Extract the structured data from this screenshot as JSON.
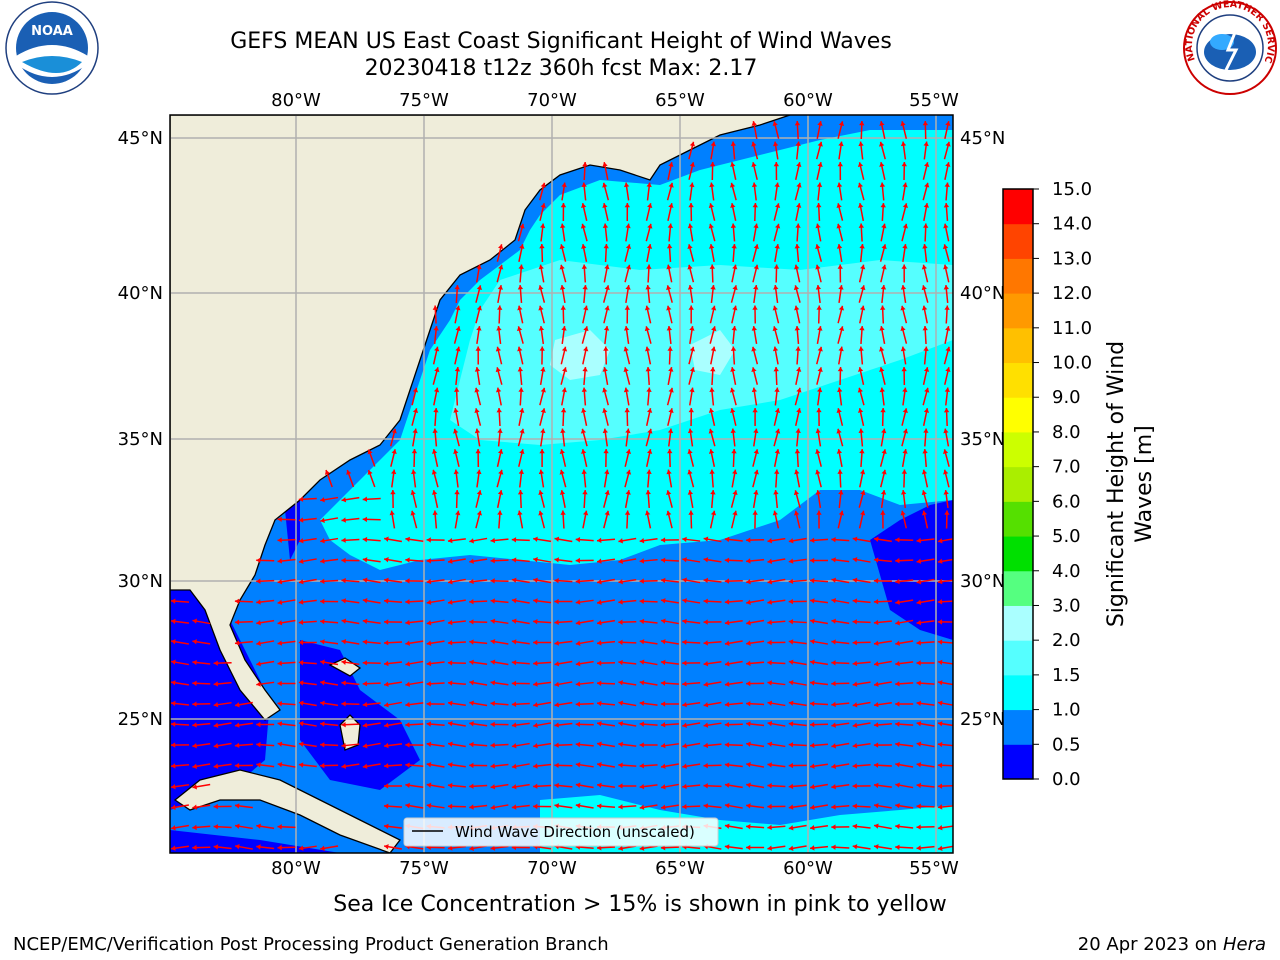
{
  "header": {
    "title_line1": "GEFS MEAN US East Coast Significant Height of Wind Waves",
    "title_line2": "20230418 t12z 360h fcst   Max: 2.17"
  },
  "logos": {
    "left_name": "NOAA",
    "right_name": "NATIONAL WEATHER SERVICE"
  },
  "map": {
    "lon_ticks": [
      "80°W",
      "75°W",
      "70°W",
      "65°W",
      "60°W",
      "55°W"
    ],
    "lat_ticks": [
      "45°N",
      "40°N",
      "35°N",
      "30°N",
      "25°N"
    ],
    "legend_label": "Wind Wave Direction (unscaled)",
    "colors": {
      "land": "#efedda",
      "level_0": "#0000ff",
      "level_05": "#0080ff",
      "level_1": "#00ffff",
      "level_15": "#55ffff",
      "level_2": "#aaffff",
      "arrow": "#ff0000",
      "grid": "#b0b0b0"
    }
  },
  "colorbar": {
    "label_line1": "Significant Height of Wind",
    "label_line2": "Waves [m]",
    "ticks": [
      "0.0",
      "0.5",
      "1.0",
      "1.5",
      "2.0",
      "3.0",
      "4.0",
      "5.0",
      "6.0",
      "7.0",
      "8.0",
      "9.0",
      "10.0",
      "11.0",
      "12.0",
      "13.0",
      "14.0",
      "15.0"
    ],
    "colors": [
      "#0000ff",
      "#0080ff",
      "#00ffff",
      "#55ffff",
      "#aaffff",
      "#55ff80",
      "#00e000",
      "#55e000",
      "#aaee00",
      "#ccff00",
      "#ffff00",
      "#ffe000",
      "#ffc000",
      "#ff9900",
      "#ff7700",
      "#ff4400",
      "#ff0000"
    ]
  },
  "note": "Sea Ice Concentration > 15% is shown in pink to yellow",
  "footer": {
    "left": "NCEP/EMC/Verification Post Processing Product Generation Branch",
    "date": "20 Apr 2023 on ",
    "machine": "Hera"
  }
}
